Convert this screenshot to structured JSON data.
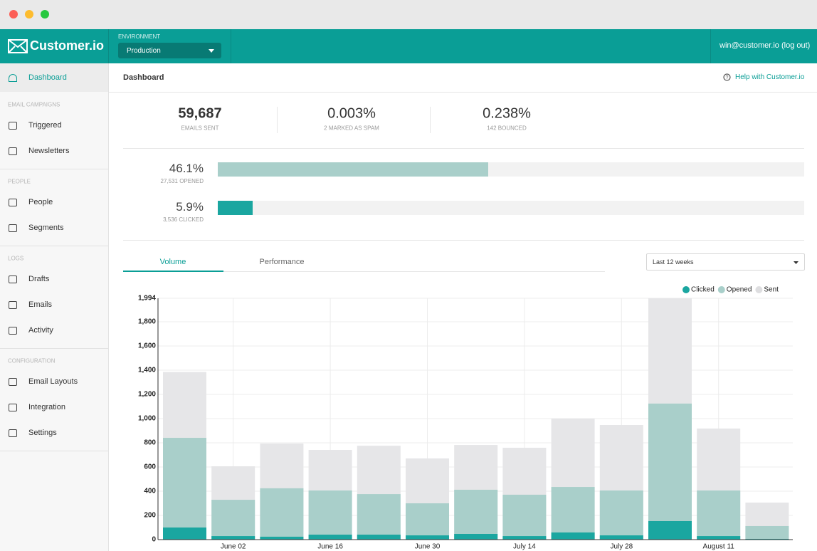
{
  "header": {
    "logo": "Customer.io",
    "environment_label": "ENVIRONMENT",
    "environment": "Production",
    "account": "win@customer.io (log out)"
  },
  "sidebar": {
    "top": "Dashboard",
    "sections": [
      {
        "title": "EMAIL CAMPAIGNS",
        "items": [
          "Triggered",
          "Newsletters"
        ]
      },
      {
        "title": "PEOPLE",
        "items": [
          "People",
          "Segments"
        ]
      },
      {
        "title": "LOGS",
        "items": [
          "Drafts",
          "Emails",
          "Activity"
        ]
      },
      {
        "title": "CONFIGURATION",
        "items": [
          "Email Layouts",
          "Integration",
          "Settings"
        ]
      }
    ]
  },
  "page": {
    "title": "Dashboard",
    "help": "Help with Customer.io"
  },
  "stats": [
    {
      "value": "59,687",
      "label": "EMAILS SENT"
    },
    {
      "value": "0.003%",
      "label": "2 MARKED AS SPAM"
    },
    {
      "value": "0.238%",
      "label": "142 BOUNCED"
    }
  ],
  "rates": [
    {
      "value": 46.1,
      "label": "46.1%",
      "detail": "27,531 OPENED"
    },
    {
      "value": 5.9,
      "label": "5.9%",
      "detail": "3,536 CLICKED"
    }
  ],
  "tabs": [
    "Volume",
    "Performance"
  ],
  "range": "Last 12 weeks",
  "chart_data": {
    "type": "bar",
    "categories": [
      null,
      "June 02",
      null,
      "June 16",
      null,
      "June 30",
      null,
      "July 14",
      null,
      "July 28",
      null,
      "August 11",
      null
    ],
    "series": [
      {
        "name": "Clicked",
        "color": "#1aa6a0",
        "values": [
          100,
          29,
          24,
          41,
          41,
          35,
          47,
          29,
          59,
          35,
          153,
          29,
          6
        ]
      },
      {
        "name": "Opened",
        "color": "#a9cfca",
        "values": [
          841,
          329,
          424,
          406,
          376,
          300,
          412,
          371,
          435,
          406,
          1124,
          406,
          112
        ]
      },
      {
        "name": "Sent",
        "color": "#e6e6e8",
        "values": [
          1385,
          606,
          794,
          741,
          776,
          671,
          782,
          759,
          1000,
          947,
          1994,
          918,
          306
        ]
      }
    ],
    "ylim": [
      0,
      1994
    ],
    "yticks": [
      0,
      200,
      400,
      600,
      800,
      {
        "value": 1000,
        "label": "1,000"
      },
      {
        "value": 1200,
        "label": "1,200"
      },
      {
        "value": 1400,
        "label": "1,400"
      },
      {
        "value": 1600,
        "label": "1,600"
      },
      {
        "value": 1800,
        "label": "1,800"
      },
      {
        "value": 1994,
        "label": "1,994"
      }
    ],
    "grid": true,
    "legend": "top-right"
  }
}
